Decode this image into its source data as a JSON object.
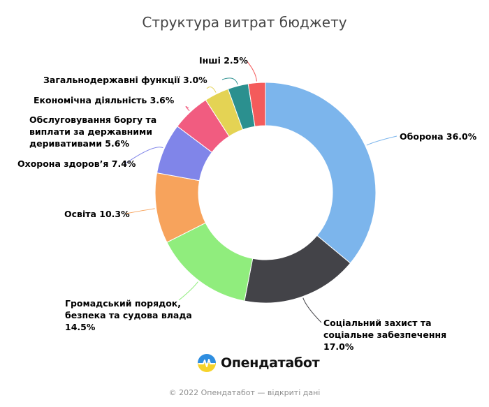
{
  "chart_data": {
    "type": "pie",
    "title": "Структура витрат бюджету",
    "slices": [
      {
        "label": "Оборона",
        "value": 36.0,
        "value_text": "36.0%",
        "color": "#7cb5ec"
      },
      {
        "label": "Соціальний захист та соціальне забезпечення",
        "value": 17.0,
        "value_text": "17.0%",
        "color": "#434348"
      },
      {
        "label": "Громадський порядок, безпека та судова влада",
        "value": 14.5,
        "value_text": "14.5%",
        "color": "#90ed7d"
      },
      {
        "label": "Освіта",
        "value": 10.3,
        "value_text": "10.3%",
        "color": "#f7a35c"
      },
      {
        "label": "Охорона здоров’я",
        "value": 7.4,
        "value_text": "7.4%",
        "color": "#8085e9"
      },
      {
        "label": "Обслуговування боргу та виплати за державними деривативами",
        "value": 5.6,
        "value_text": "5.6%",
        "color": "#f15c80"
      },
      {
        "label": "Економічна діяльність",
        "value": 3.6,
        "value_text": "3.6%",
        "color": "#e4d354"
      },
      {
        "label": "Загальнодержавні функції",
        "value": 3.0,
        "value_text": "3.0%",
        "color": "#2b908f"
      },
      {
        "label": "Інші",
        "value": 2.5,
        "value_text": "2.5%",
        "color": "#f45b5b"
      }
    ]
  },
  "labels": {
    "oborona": "Оборона 36.0%",
    "social_1": "Соціальний захист та",
    "social_2": "соціальне забезпечення",
    "social_3": "17.0%",
    "order_1": "Громадський порядок,",
    "order_2": "безпека та судова влада",
    "order_3": "14.5%",
    "osvita": "Освіта 10.3%",
    "health": "Охорона здоров’я 7.4%",
    "debt_1": "Обслуговування боргу та",
    "debt_2": "виплати за державними",
    "debt_3": "деривативами 5.6%",
    "econ": "Економічна діяльність 3.6%",
    "general": "Загальнодержавні функції 3.0%",
    "other": "Інші 2.5%"
  },
  "brand": {
    "name": "Опендатабот",
    "logo_icon": "opendatabot-logo-icon"
  },
  "footer": "© 2022 Опендатабот — відкриті дані"
}
